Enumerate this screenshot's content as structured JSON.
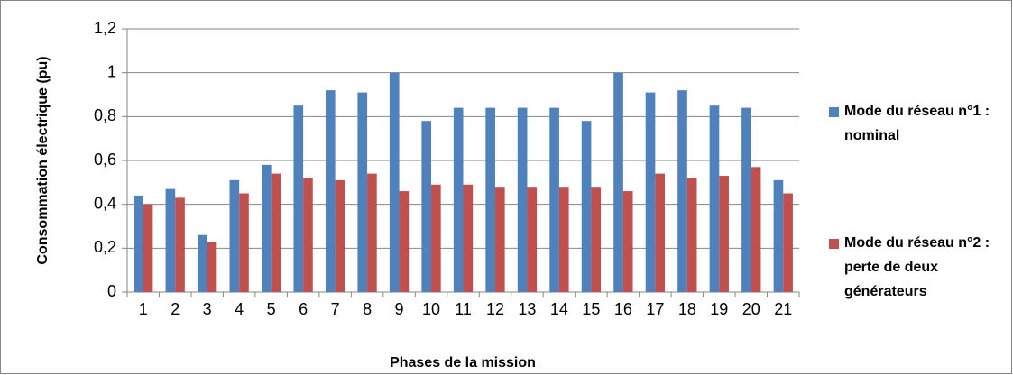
{
  "chart_data": {
    "type": "bar",
    "ylabel": "Consommation électrique (pu)",
    "xlabel": "Phases de la mission",
    "categories": [
      "1",
      "2",
      "3",
      "4",
      "5",
      "6",
      "7",
      "8",
      "9",
      "10",
      "11",
      "12",
      "13",
      "14",
      "15",
      "16",
      "17",
      "18",
      "19",
      "20",
      "21"
    ],
    "series": [
      {
        "name": "Mode du réseau n°1 : nominal",
        "color": "#4f81bd",
        "values": [
          0.44,
          0.47,
          0.26,
          0.51,
          0.58,
          0.85,
          0.92,
          0.91,
          1.0,
          0.78,
          0.84,
          0.84,
          0.84,
          0.84,
          0.78,
          1.0,
          0.91,
          0.92,
          0.85,
          0.84,
          0.51
        ]
      },
      {
        "name": "Mode du réseau n°2 : perte de deux générateurs",
        "color": "#c0504d",
        "values": [
          0.4,
          0.43,
          0.23,
          0.45,
          0.54,
          0.52,
          0.51,
          0.54,
          0.46,
          0.49,
          0.49,
          0.48,
          0.48,
          0.48,
          0.48,
          0.46,
          0.54,
          0.52,
          0.53,
          0.57,
          0.45
        ]
      }
    ],
    "ylim": [
      0,
      1.2
    ],
    "yticks": [
      0,
      {
        "value": 0.2,
        "label": "0,2"
      },
      {
        "value": 0.4,
        "label": "0,4"
      },
      {
        "value": 0.6,
        "label": "0,6"
      },
      {
        "value": 0.8,
        "label": "0,8"
      },
      1,
      {
        "value": 1.2,
        "label": "1,2"
      }
    ],
    "grid": true,
    "legend": "right"
  }
}
